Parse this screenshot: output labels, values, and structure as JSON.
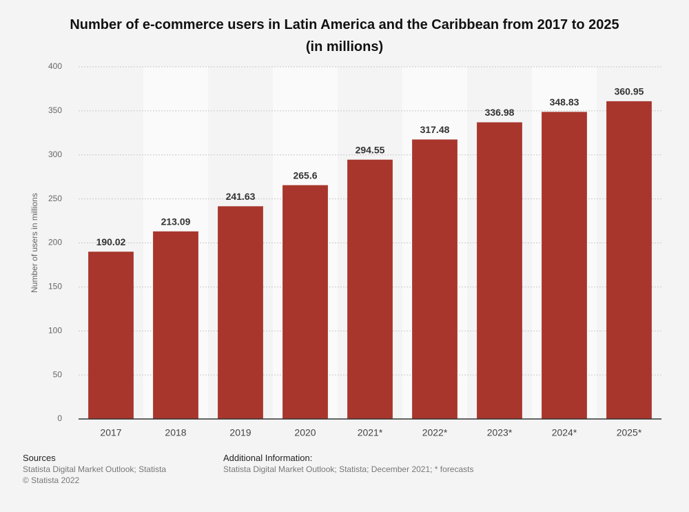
{
  "chart_data": {
    "type": "bar",
    "title": "Number of e-commerce users in Latin America and the Caribbean from 2017 to 2025 (in millions)",
    "y_label": "Number of users in millions",
    "categories": [
      "2017",
      "2018",
      "2019",
      "2020",
      "2021*",
      "2022*",
      "2023*",
      "2024*",
      "2025*"
    ],
    "values": [
      190.02,
      213.09,
      241.63,
      265.6,
      294.55,
      317.48,
      336.98,
      348.83,
      360.95
    ],
    "color": "#a8362c",
    "ylim": [
      0,
      400
    ],
    "yticks": [
      0,
      50,
      100,
      150,
      200,
      250,
      300,
      350,
      400
    ],
    "grid": true
  },
  "footer": {
    "sources_title": "Sources",
    "sources": [
      "Statista Digital Market Outlook; Statista",
      "© Statista 2022"
    ],
    "info_title": "Additional Information:",
    "info": "Statista Digital Market Outlook; Statista; December 2021; * forecasts"
  }
}
